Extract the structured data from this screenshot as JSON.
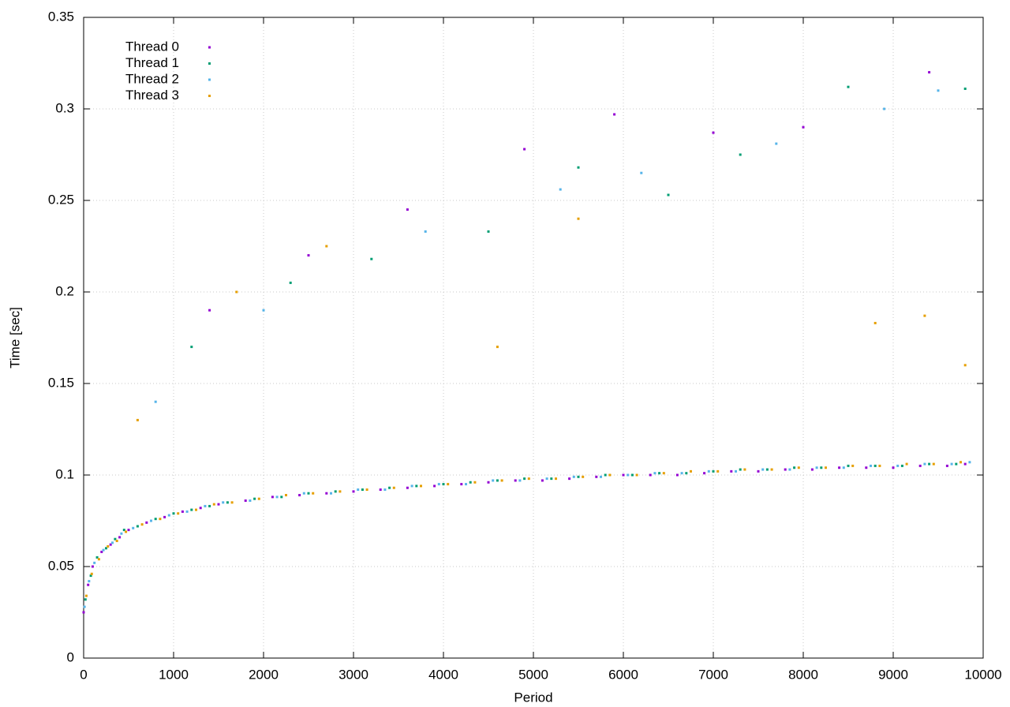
{
  "chart_data": {
    "type": "scatter",
    "xlabel": "Period",
    "ylabel": "Time [sec]",
    "xlim": [
      0,
      10000
    ],
    "ylim": [
      0,
      0.35
    ],
    "xticks": [
      0,
      1000,
      2000,
      3000,
      4000,
      5000,
      6000,
      7000,
      8000,
      9000,
      10000
    ],
    "yticks": [
      0,
      0.05,
      0.1,
      0.15,
      0.2,
      0.25,
      0.3,
      0.35
    ],
    "grid": true,
    "legend": "top-left",
    "series": [
      {
        "name": "Thread 0",
        "color": "#9400d3",
        "x": [
          0,
          50,
          100,
          200,
          300,
          400,
          500,
          700,
          900,
          1100,
          1300,
          1500,
          1800,
          2100,
          2400,
          2700,
          3000,
          3300,
          3600,
          3900,
          4200,
          4500,
          4800,
          5100,
          5400,
          5700,
          6000,
          6300,
          6600,
          6900,
          7200,
          7500,
          7800,
          8100,
          8400,
          8700,
          9000,
          9300,
          9600,
          9800,
          1400,
          2500,
          3600,
          4900,
          5900,
          7000,
          8000,
          9400
        ],
        "values": [
          0.025,
          0.04,
          0.05,
          0.058,
          0.062,
          0.066,
          0.07,
          0.074,
          0.077,
          0.08,
          0.082,
          0.084,
          0.086,
          0.088,
          0.089,
          0.09,
          0.091,
          0.092,
          0.093,
          0.094,
          0.095,
          0.096,
          0.097,
          0.097,
          0.098,
          0.099,
          0.1,
          0.1,
          0.1,
          0.101,
          0.102,
          0.102,
          0.103,
          0.103,
          0.104,
          0.104,
          0.104,
          0.105,
          0.105,
          0.106,
          0.19,
          0.22,
          0.245,
          0.278,
          0.297,
          0.287,
          0.29,
          0.32
        ]
      },
      {
        "name": "Thread 1",
        "color": "#009e73",
        "x": [
          20,
          80,
          150,
          250,
          350,
          450,
          600,
          800,
          1000,
          1200,
          1400,
          1600,
          1900,
          2200,
          2500,
          2800,
          3100,
          3400,
          3700,
          4000,
          4300,
          4600,
          4900,
          5200,
          5500,
          5800,
          6100,
          6400,
          6700,
          7000,
          7300,
          7600,
          7900,
          8200,
          8500,
          8800,
          9100,
          9400,
          9700,
          1200,
          2300,
          3200,
          4500,
          5500,
          6500,
          7300,
          8500,
          9800
        ],
        "values": [
          0.032,
          0.045,
          0.055,
          0.06,
          0.065,
          0.07,
          0.072,
          0.076,
          0.079,
          0.081,
          0.083,
          0.085,
          0.087,
          0.088,
          0.09,
          0.091,
          0.092,
          0.093,
          0.094,
          0.095,
          0.096,
          0.097,
          0.098,
          0.098,
          0.099,
          0.1,
          0.1,
          0.101,
          0.101,
          0.102,
          0.103,
          0.103,
          0.104,
          0.104,
          0.105,
          0.105,
          0.105,
          0.106,
          0.106,
          0.17,
          0.205,
          0.218,
          0.233,
          0.268,
          0.253,
          0.275,
          0.312,
          0.311
        ]
      },
      {
        "name": "Thread 2",
        "color": "#56b4e9",
        "x": [
          10,
          60,
          120,
          220,
          320,
          420,
          550,
          750,
          950,
          1150,
          1350,
          1550,
          1850,
          2150,
          2450,
          2750,
          3050,
          3350,
          3650,
          3950,
          4250,
          4550,
          4850,
          5150,
          5450,
          5750,
          6050,
          6350,
          6650,
          6950,
          7250,
          7550,
          7850,
          8150,
          8450,
          8750,
          9050,
          9350,
          9650,
          9850,
          800,
          2000,
          3800,
          5300,
          6200,
          7700,
          8900,
          9500
        ],
        "values": [
          0.028,
          0.042,
          0.052,
          0.059,
          0.063,
          0.068,
          0.071,
          0.075,
          0.078,
          0.08,
          0.083,
          0.085,
          0.086,
          0.088,
          0.09,
          0.09,
          0.092,
          0.092,
          0.094,
          0.095,
          0.095,
          0.097,
          0.097,
          0.098,
          0.099,
          0.099,
          0.1,
          0.101,
          0.101,
          0.102,
          0.102,
          0.103,
          0.103,
          0.104,
          0.104,
          0.105,
          0.105,
          0.106,
          0.106,
          0.107,
          0.14,
          0.19,
          0.233,
          0.256,
          0.265,
          0.281,
          0.3,
          0.31
        ]
      },
      {
        "name": "Thread 3",
        "color": "#e69f00",
        "x": [
          30,
          90,
          170,
          270,
          370,
          470,
          650,
          850,
          1050,
          1250,
          1450,
          1650,
          1950,
          2250,
          2550,
          2850,
          3150,
          3450,
          3750,
          4050,
          4350,
          4650,
          4950,
          5250,
          5550,
          5850,
          6150,
          6450,
          6750,
          7050,
          7350,
          7650,
          7950,
          8250,
          8550,
          8850,
          9150,
          9450,
          9750,
          600,
          1700,
          2700,
          4600,
          5500,
          8800,
          9350,
          9800
        ],
        "values": [
          0.034,
          0.046,
          0.054,
          0.061,
          0.064,
          0.069,
          0.073,
          0.076,
          0.079,
          0.081,
          0.084,
          0.085,
          0.087,
          0.089,
          0.09,
          0.091,
          0.092,
          0.093,
          0.094,
          0.095,
          0.096,
          0.097,
          0.098,
          0.098,
          0.099,
          0.1,
          0.1,
          0.101,
          0.102,
          0.102,
          0.103,
          0.103,
          0.104,
          0.104,
          0.105,
          0.105,
          0.106,
          0.106,
          0.107,
          0.13,
          0.2,
          0.225,
          0.17,
          0.24,
          0.183,
          0.187,
          0.16
        ]
      }
    ]
  }
}
